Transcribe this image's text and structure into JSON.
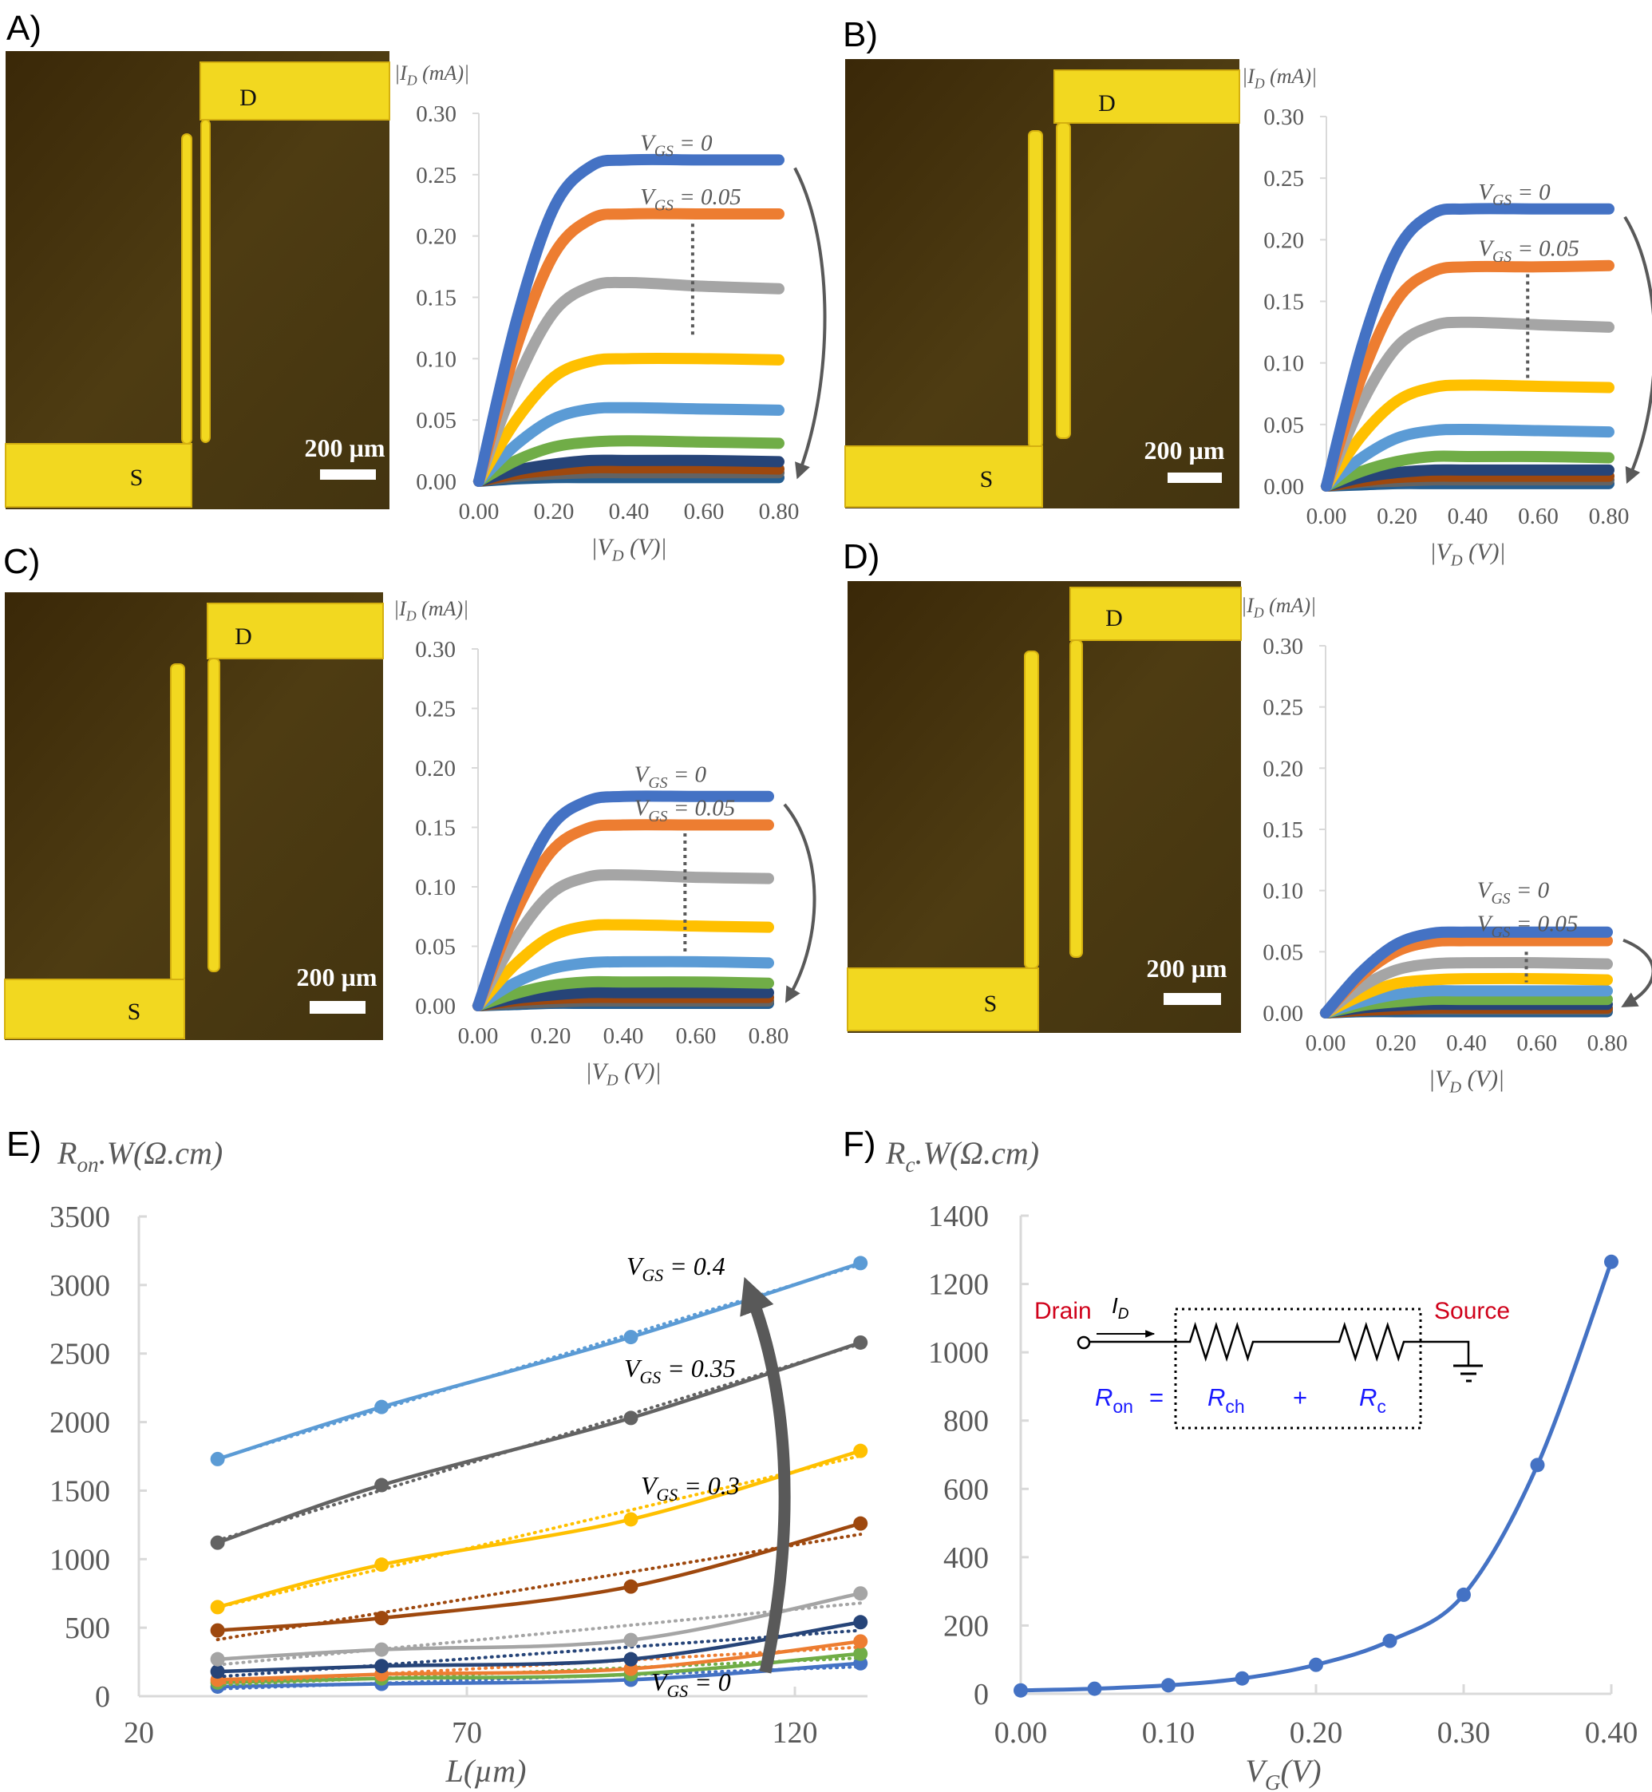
{
  "panels": [
    {
      "label": "A)",
      "photo": {
        "drain_label": "D",
        "source_label": "S",
        "scale_bar": "200 µm"
      }
    },
    {
      "label": "B)",
      "photo": {
        "drain_label": "D",
        "source_label": "S",
        "scale_bar": "200 µm"
      }
    },
    {
      "label": "C)",
      "photo": {
        "drain_label": "D",
        "source_label": "S",
        "scale_bar": "200 µm"
      }
    },
    {
      "label": "D)",
      "photo": {
        "drain_label": "D",
        "source_label": "S",
        "scale_bar": "200 µm"
      }
    },
    {
      "label": "E)"
    },
    {
      "label": "F)"
    }
  ],
  "colors": {
    "series": [
      "#4472c4",
      "#ed7d31",
      "#a5a5a5",
      "#ffc000",
      "#5b9bd5",
      "#70ad47",
      "#264478",
      "#9e480e",
      "#636363",
      "#255e91"
    ],
    "axis": "#d9d9d9",
    "tick_text": "#595959",
    "arrow": "#595959",
    "photo_background": "#4a3a12",
    "electrode": "#f2d820",
    "circuit_red": "#d0021b",
    "circuit_blue": "#1a1aff"
  },
  "chart_data": [
    {
      "type": "line",
      "panel": "A",
      "ylabel": {
        "main": "|I",
        "sub": "D",
        "rest": " (mA)|"
      },
      "xlabel": {
        "main": "|V",
        "sub": "D",
        "rest": " (V)|"
      },
      "xlim": [
        0,
        0.8
      ],
      "ylim": [
        0,
        0.3
      ],
      "xticks": [
        "0.00",
        "0.20",
        "0.40",
        "0.60",
        "0.80"
      ],
      "yticks": [
        "0.00",
        "0.05",
        "0.10",
        "0.15",
        "0.20",
        "0.25",
        "0.30"
      ],
      "x": [
        0,
        0.1,
        0.2,
        0.3,
        0.4,
        0.6,
        0.8
      ],
      "series": [
        {
          "values": [
            0,
            0.131,
            0.223,
            0.257,
            0.262,
            0.262,
            0.262
          ]
        },
        {
          "values": [
            0,
            0.109,
            0.185,
            0.214,
            0.218,
            0.218,
            0.218
          ]
        },
        {
          "values": [
            0,
            0.081,
            0.138,
            0.159,
            0.162,
            0.159,
            0.157
          ]
        },
        {
          "values": [
            0,
            0.05,
            0.085,
            0.098,
            0.1,
            0.1,
            0.099
          ]
        },
        {
          "values": [
            0,
            0.03,
            0.051,
            0.059,
            0.06,
            0.059,
            0.058
          ]
        },
        {
          "values": [
            0,
            0.017,
            0.028,
            0.032,
            0.033,
            0.032,
            0.031
          ]
        },
        {
          "values": [
            0,
            0.009,
            0.014,
            0.017,
            0.017,
            0.017,
            0.016
          ]
        },
        {
          "values": [
            0,
            0.006,
            0.009,
            0.011,
            0.011,
            0.011,
            0.01
          ]
        },
        {
          "values": [
            0,
            0.004,
            0.006,
            0.007,
            0.007,
            0.007,
            0.007
          ]
        },
        {
          "values": [
            0,
            0.002,
            0.003,
            0.003,
            0.003,
            0.003,
            0.003
          ]
        }
      ],
      "annotations": [
        {
          "main": "V",
          "sub": "GS",
          "rest": " = 0"
        },
        {
          "main": "V",
          "sub": "GS",
          "rest": " = 0.05"
        }
      ]
    },
    {
      "type": "line",
      "panel": "B",
      "ylabel": {
        "main": "|I",
        "sub": "D",
        "rest": " (mA)|"
      },
      "xlabel": {
        "main": "|V",
        "sub": "D",
        "rest": " (V)|"
      },
      "xlim": [
        0,
        0.8
      ],
      "ylim": [
        0,
        0.3
      ],
      "xticks": [
        "0.00",
        "0.20",
        "0.40",
        "0.60",
        "0.80"
      ],
      "yticks": [
        "0.00",
        "0.05",
        "0.10",
        "0.15",
        "0.20",
        "0.25",
        "0.30"
      ],
      "x": [
        0,
        0.1,
        0.2,
        0.3,
        0.4,
        0.6,
        0.8
      ],
      "series": [
        {
          "values": [
            0,
            0.113,
            0.191,
            0.221,
            0.225,
            0.225,
            0.225
          ]
        },
        {
          "values": [
            0,
            0.089,
            0.151,
            0.174,
            0.178,
            0.178,
            0.179
          ]
        },
        {
          "values": [
            0,
            0.067,
            0.113,
            0.13,
            0.133,
            0.131,
            0.129
          ]
        },
        {
          "values": [
            0,
            0.041,
            0.069,
            0.08,
            0.082,
            0.081,
            0.08
          ]
        },
        {
          "values": [
            0,
            0.023,
            0.039,
            0.045,
            0.046,
            0.045,
            0.044
          ]
        },
        {
          "values": [
            0,
            0.012,
            0.02,
            0.024,
            0.024,
            0.024,
            0.023
          ]
        },
        {
          "values": [
            0,
            0.007,
            0.011,
            0.013,
            0.013,
            0.013,
            0.013
          ]
        },
        {
          "values": [
            0,
            0.004,
            0.007,
            0.008,
            0.008,
            0.008,
            0.008
          ]
        },
        {
          "values": [
            0,
            0.003,
            0.004,
            0.005,
            0.005,
            0.005,
            0.005
          ]
        },
        {
          "values": [
            0,
            0.001,
            0.002,
            0.002,
            0.002,
            0.002,
            0.002
          ]
        }
      ],
      "annotations": [
        {
          "main": "V",
          "sub": "GS",
          "rest": " = 0"
        },
        {
          "main": "V",
          "sub": "GS",
          "rest": " = 0.05"
        }
      ]
    },
    {
      "type": "line",
      "panel": "C",
      "ylabel": {
        "main": "|I",
        "sub": "D",
        "rest": " (mA)|"
      },
      "xlabel": {
        "main": "|V",
        "sub": "D",
        "rest": " (V)|"
      },
      "xlim": [
        0,
        0.8
      ],
      "ylim": [
        0,
        0.3
      ],
      "xticks": [
        "0.00",
        "0.20",
        "0.40",
        "0.60",
        "0.80"
      ],
      "yticks": [
        "0.00",
        "0.05",
        "0.10",
        "0.15",
        "0.20",
        "0.25",
        "0.30"
      ],
      "x": [
        0,
        0.1,
        0.2,
        0.3,
        0.4,
        0.6,
        0.8
      ],
      "series": [
        {
          "values": [
            0,
            0.088,
            0.15,
            0.172,
            0.176,
            0.176,
            0.176
          ]
        },
        {
          "values": [
            0,
            0.076,
            0.129,
            0.149,
            0.152,
            0.152,
            0.152
          ]
        },
        {
          "values": [
            0,
            0.055,
            0.094,
            0.108,
            0.11,
            0.108,
            0.107
          ]
        },
        {
          "values": [
            0,
            0.034,
            0.058,
            0.067,
            0.068,
            0.067,
            0.066
          ]
        },
        {
          "values": [
            0,
            0.019,
            0.031,
            0.036,
            0.037,
            0.037,
            0.036
          ]
        },
        {
          "values": [
            0,
            0.01,
            0.017,
            0.02,
            0.02,
            0.02,
            0.019
          ]
        },
        {
          "values": [
            0,
            0.006,
            0.009,
            0.011,
            0.011,
            0.011,
            0.011
          ]
        },
        {
          "values": [
            0,
            0.004,
            0.006,
            0.007,
            0.007,
            0.007,
            0.007
          ]
        },
        {
          "values": [
            0,
            0.002,
            0.003,
            0.004,
            0.004,
            0.004,
            0.004
          ]
        },
        {
          "values": [
            0,
            0.001,
            0.002,
            0.002,
            0.002,
            0.002,
            0.002
          ]
        }
      ],
      "annotations": [
        {
          "main": "V",
          "sub": "GS",
          "rest": " = 0"
        },
        {
          "main": "V",
          "sub": "GS",
          "rest": " = 0.05"
        }
      ]
    },
    {
      "type": "line",
      "panel": "D",
      "ylabel": {
        "main": "|I",
        "sub": "D",
        "rest": " (mA)|"
      },
      "xlabel": {
        "main": "|V",
        "sub": "D",
        "rest": " (V)|"
      },
      "xlim": [
        0,
        0.8
      ],
      "ylim": [
        0,
        0.3
      ],
      "xticks": [
        "0.00",
        "0.20",
        "0.40",
        "0.60",
        "0.80"
      ],
      "yticks": [
        "0.00",
        "0.05",
        "0.10",
        "0.15",
        "0.20",
        "0.25",
        "0.30"
      ],
      "x": [
        0,
        0.1,
        0.2,
        0.3,
        0.4,
        0.6,
        0.8
      ],
      "series": [
        {
          "values": [
            0,
            0.033,
            0.056,
            0.065,
            0.066,
            0.066,
            0.066
          ]
        },
        {
          "values": [
            0,
            0.03,
            0.05,
            0.058,
            0.059,
            0.059,
            0.059
          ]
        },
        {
          "values": [
            0,
            0.021,
            0.035,
            0.04,
            0.041,
            0.041,
            0.04
          ]
        },
        {
          "values": [
            0,
            0.014,
            0.024,
            0.027,
            0.028,
            0.028,
            0.027
          ]
        },
        {
          "values": [
            0,
            0.009,
            0.015,
            0.018,
            0.018,
            0.018,
            0.018
          ]
        },
        {
          "values": [
            0,
            0.006,
            0.009,
            0.011,
            0.011,
            0.011,
            0.011
          ]
        },
        {
          "values": [
            0,
            0.004,
            0.006,
            0.007,
            0.007,
            0.007,
            0.007
          ]
        },
        {
          "values": [
            0,
            0.002,
            0.003,
            0.004,
            0.004,
            0.004,
            0.004
          ]
        },
        {
          "values": [
            0,
            0.002,
            0.003,
            0.003,
            0.003,
            0.003,
            0.003
          ]
        },
        {
          "values": [
            0,
            0.001,
            0.001,
            0.001,
            0.001,
            0.001,
            0.001
          ]
        }
      ],
      "annotations": [
        {
          "main": "V",
          "sub": "GS",
          "rest": " = 0"
        },
        {
          "main": "V",
          "sub": "GS",
          "rest": " = 0.05"
        }
      ]
    },
    {
      "type": "line",
      "panel": "E",
      "ylabel": {
        "main": "R",
        "sub": "on",
        "rest": ".W(Ω.cm)"
      },
      "xlabel": {
        "main": "L",
        "sub": "",
        "rest": "(µm)"
      },
      "xlim": [
        20,
        131
      ],
      "ylim": [
        0,
        3500
      ],
      "xticks": [
        "20",
        "70",
        "120"
      ],
      "yticks": [
        "0",
        "500",
        "1000",
        "1500",
        "2000",
        "2500",
        "3000",
        "3500"
      ],
      "x": [
        32,
        57,
        95,
        130
      ],
      "trendlines": "linear, dotted",
      "series": [
        {
          "color": "#5b9bd5",
          "values": [
            1730,
            2110,
            2620,
            3160
          ]
        },
        {
          "color": "#636363",
          "values": [
            1120,
            1540,
            2030,
            2580
          ]
        },
        {
          "color": "#ffc000",
          "values": [
            650,
            960,
            1290,
            1790
          ]
        },
        {
          "color": "#9e480e",
          "values": [
            480,
            570,
            800,
            1260
          ]
        },
        {
          "color": "#a5a5a5",
          "values": [
            270,
            340,
            410,
            750
          ]
        },
        {
          "color": "#264478",
          "values": [
            180,
            220,
            270,
            540
          ]
        },
        {
          "color": "#ed7d31",
          "values": [
            120,
            160,
            200,
            400
          ]
        },
        {
          "color": "#70ad47",
          "values": [
            100,
            130,
            160,
            310
          ]
        },
        {
          "color": "#4472c4",
          "values": [
            70,
            90,
            120,
            240
          ]
        }
      ],
      "annotations": [
        {
          "main": "V",
          "sub": "GS",
          "rest": " = 0.4"
        },
        {
          "main": "V",
          "sub": "GS",
          "rest": " = 0.35"
        },
        {
          "main": "V",
          "sub": "GS",
          "rest": " = 0.3"
        },
        {
          "main": "V",
          "sub": "GS",
          "rest": " = 0"
        }
      ]
    },
    {
      "type": "line",
      "panel": "F",
      "ylabel": {
        "main": "R",
        "sub": "c",
        "rest": ".W(Ω.cm)"
      },
      "xlabel": {
        "main": "V",
        "sub": "G",
        "rest": "(V)"
      },
      "xlim": [
        0,
        0.4
      ],
      "ylim": [
        0,
        1400
      ],
      "xticks": [
        "0.00",
        "0.10",
        "0.20",
        "0.30",
        "0.40"
      ],
      "yticks": [
        "0",
        "200",
        "400",
        "600",
        "800",
        "1000",
        "1200",
        "1400"
      ],
      "x": [
        0,
        0.05,
        0.1,
        0.15,
        0.2,
        0.25,
        0.3,
        0.35,
        0.4
      ],
      "series": [
        {
          "color": "#4472c4",
          "values": [
            10,
            15,
            25,
            45,
            85,
            155,
            290,
            670,
            1265
          ]
        }
      ]
    }
  ],
  "circuit": {
    "drain": "Drain",
    "source": "Source",
    "current": {
      "main": "I",
      "sub": "D"
    },
    "r_on": {
      "main": "R",
      "sub": "on"
    },
    "equals": "=",
    "r_ch": {
      "main": "R",
      "sub": "ch"
    },
    "plus": "+",
    "r_c": {
      "main": "R",
      "sub": "c"
    }
  }
}
